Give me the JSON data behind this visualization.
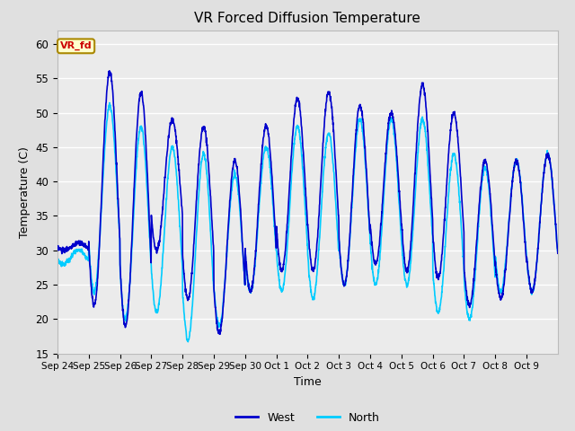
{
  "title": "VR Forced Diffusion Temperature",
  "xlabel": "Time",
  "ylabel": "Temperature (C)",
  "ylim": [
    15,
    62
  ],
  "yticks": [
    15,
    20,
    25,
    30,
    35,
    40,
    45,
    50,
    55,
    60
  ],
  "annotation_text": "VR_fd",
  "annotation_bbox_facecolor": "#ffffcc",
  "annotation_bbox_edgecolor": "#aa8800",
  "annotation_text_color": "#cc0000",
  "west_color": "#0000cc",
  "north_color": "#00ccff",
  "background_color": "#e0e0e0",
  "plot_bg_color": "#ebebeb",
  "grid_color": "#ffffff",
  "line_width": 1.2,
  "x_tick_labels": [
    "Sep 24",
    "Sep 25",
    "Sep 26",
    "Sep 27",
    "Sep 28",
    "Sep 29",
    "Sep 30",
    "Oct 1",
    "Oct 2",
    "Oct 3",
    "Oct 4",
    "Oct 5",
    "Oct 6",
    "Oct 7",
    "Oct 8",
    "Oct 9"
  ],
  "num_days": 16,
  "west_daily": [
    {
      "peak": 31,
      "trough": 30
    },
    {
      "peak": 56,
      "trough": 22
    },
    {
      "peak": 53,
      "trough": 19
    },
    {
      "peak": 49,
      "trough": 30
    },
    {
      "peak": 48,
      "trough": 23
    },
    {
      "peak": 43,
      "trough": 18
    },
    {
      "peak": 48,
      "trough": 24
    },
    {
      "peak": 52,
      "trough": 27
    },
    {
      "peak": 53,
      "trough": 27
    },
    {
      "peak": 51,
      "trough": 25
    },
    {
      "peak": 50,
      "trough": 28
    },
    {
      "peak": 54,
      "trough": 27
    },
    {
      "peak": 50,
      "trough": 26
    },
    {
      "peak": 43,
      "trough": 22
    },
    {
      "peak": 43,
      "trough": 23
    },
    {
      "peak": 44,
      "trough": 24
    }
  ],
  "north_daily": [
    {
      "peak": 30,
      "trough": 28
    },
    {
      "peak": 51,
      "trough": 24
    },
    {
      "peak": 48,
      "trough": 20
    },
    {
      "peak": 45,
      "trough": 21
    },
    {
      "peak": 44,
      "trough": 17
    },
    {
      "peak": 41,
      "trough": 19
    },
    {
      "peak": 45,
      "trough": 24
    },
    {
      "peak": 48,
      "trough": 24
    },
    {
      "peak": 47,
      "trough": 23
    },
    {
      "peak": 49,
      "trough": 25
    },
    {
      "peak": 49,
      "trough": 25
    },
    {
      "peak": 49,
      "trough": 25
    },
    {
      "peak": 44,
      "trough": 21
    },
    {
      "peak": 42,
      "trough": 20
    },
    {
      "peak": 43,
      "trough": 24
    },
    {
      "peak": 44,
      "trough": 24
    }
  ]
}
